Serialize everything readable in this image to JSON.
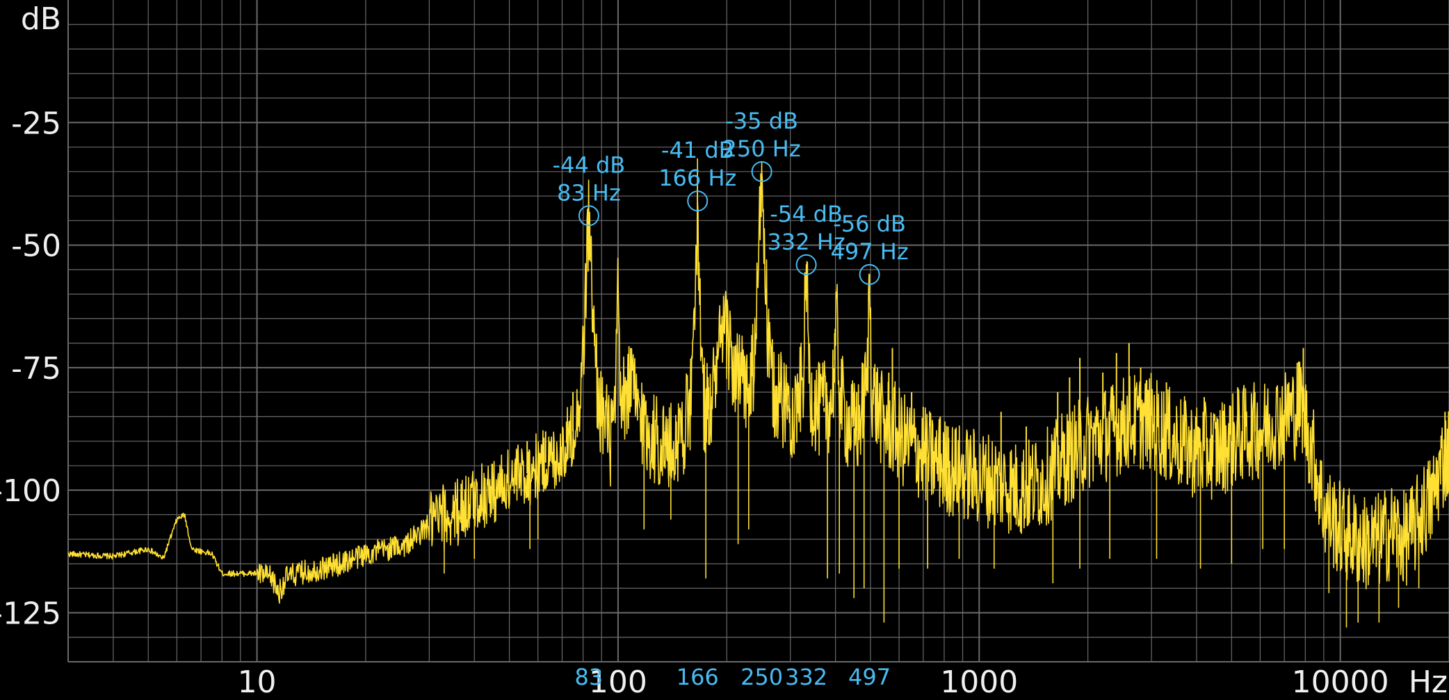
{
  "chart_data": {
    "type": "line",
    "x_scale": "log",
    "xlim": [
      3,
      20000
    ],
    "ylim": [
      -135,
      0
    ],
    "grid": true,
    "ylabel": "dB",
    "xlabel": "Hz",
    "y_ticks": [
      -25,
      -50,
      -75,
      -100,
      -125
    ],
    "x_ticks": [
      10,
      100,
      1000,
      10000
    ],
    "colors": {
      "trace": "#ffe033",
      "peak": "#48bcf2",
      "grid": "#6a6a6a",
      "text": "#f0f0f0",
      "background": "#000000"
    },
    "peaks": [
      {
        "freq": 83,
        "db": -44,
        "db_label": "-44 dB",
        "hz_label": "83 Hz",
        "axis_label": "83"
      },
      {
        "freq": 166,
        "db": -41,
        "db_label": "-41 dB",
        "hz_label": "166 Hz",
        "axis_label": "166"
      },
      {
        "freq": 250,
        "db": -35,
        "db_label": "-35 dB",
        "hz_label": "250 Hz",
        "axis_label": "250"
      },
      {
        "freq": 332,
        "db": -54,
        "db_label": "-54 dB",
        "hz_label": "332 Hz",
        "axis_label": "332"
      },
      {
        "freq": 497,
        "db": -56,
        "db_label": "-56 dB",
        "hz_label": "497 Hz",
        "axis_label": "497"
      }
    ],
    "series": [
      {
        "points": [
          [
            3,
            -113
          ],
          [
            4,
            -113.5
          ],
          [
            5,
            -112
          ],
          [
            5.5,
            -114
          ],
          [
            6.0,
            -106
          ],
          [
            6.3,
            -105
          ],
          [
            6.6,
            -112
          ],
          [
            7.5,
            -113
          ],
          [
            8,
            -117
          ],
          [
            9,
            -117
          ],
          [
            10,
            -117
          ],
          [
            11,
            -118
          ],
          [
            11.5,
            -121
          ],
          [
            12,
            -118
          ],
          [
            13,
            -117
          ],
          [
            15,
            -116
          ],
          [
            17,
            -115
          ],
          [
            20,
            -113
          ],
          [
            23,
            -112
          ],
          [
            26,
            -111
          ],
          [
            28,
            -109
          ],
          [
            30,
            -107
          ],
          [
            32,
            -106
          ],
          [
            35,
            -105
          ],
          [
            38,
            -103
          ],
          [
            42,
            -101
          ],
          [
            46,
            -100
          ],
          [
            50,
            -98
          ],
          [
            55,
            -97
          ],
          [
            60,
            -95
          ],
          [
            65,
            -94
          ],
          [
            70,
            -92
          ],
          [
            75,
            -88
          ],
          [
            78,
            -83
          ],
          [
            80,
            -72
          ],
          [
            82,
            -52
          ],
          [
            83,
            -44
          ],
          [
            84,
            -52
          ],
          [
            86,
            -72
          ],
          [
            88,
            -80
          ],
          [
            90,
            -84
          ],
          [
            95,
            -90
          ],
          [
            98,
            -86
          ],
          [
            100,
            -60
          ],
          [
            102,
            -86
          ],
          [
            105,
            -80
          ],
          [
            108,
            -78
          ],
          [
            112,
            -82
          ],
          [
            120,
            -88
          ],
          [
            130,
            -90
          ],
          [
            140,
            -92
          ],
          [
            150,
            -88
          ],
          [
            160,
            -82
          ],
          [
            164,
            -58
          ],
          [
            166,
            -41
          ],
          [
            168,
            -58
          ],
          [
            172,
            -82
          ],
          [
            180,
            -84
          ],
          [
            190,
            -72
          ],
          [
            200,
            -68
          ],
          [
            210,
            -76
          ],
          [
            220,
            -78
          ],
          [
            232,
            -80
          ],
          [
            240,
            -72
          ],
          [
            246,
            -48
          ],
          [
            250,
            -35
          ],
          [
            254,
            -48
          ],
          [
            260,
            -72
          ],
          [
            270,
            -80
          ],
          [
            290,
            -82
          ],
          [
            310,
            -84
          ],
          [
            325,
            -78
          ],
          [
            330,
            -62
          ],
          [
            332,
            -54
          ],
          [
            334,
            -62
          ],
          [
            340,
            -80
          ],
          [
            360,
            -84
          ],
          [
            390,
            -82
          ],
          [
            405,
            -66
          ],
          [
            410,
            -80
          ],
          [
            430,
            -86
          ],
          [
            460,
            -88
          ],
          [
            490,
            -78
          ],
          [
            495,
            -62
          ],
          [
            497,
            -56
          ],
          [
            499,
            -62
          ],
          [
            505,
            -80
          ],
          [
            540,
            -86
          ],
          [
            590,
            -88
          ],
          [
            620,
            -90
          ],
          [
            680,
            -92
          ],
          [
            750,
            -94
          ],
          [
            850,
            -96
          ],
          [
            950,
            -97
          ],
          [
            1100,
            -98
          ],
          [
            1300,
            -100
          ],
          [
            1500,
            -98
          ],
          [
            1700,
            -94
          ],
          [
            2000,
            -90
          ],
          [
            2300,
            -88
          ],
          [
            2600,
            -86
          ],
          [
            3000,
            -86
          ],
          [
            3500,
            -90
          ],
          [
            4000,
            -92
          ],
          [
            4500,
            -92
          ],
          [
            5000,
            -90
          ],
          [
            5500,
            -88
          ],
          [
            6000,
            -88
          ],
          [
            6500,
            -86
          ],
          [
            7000,
            -85
          ],
          [
            7500,
            -84
          ],
          [
            7800,
            -82
          ],
          [
            8000,
            -86
          ],
          [
            8500,
            -94
          ],
          [
            9000,
            -104
          ],
          [
            10000,
            -108
          ],
          [
            11000,
            -110
          ],
          [
            12000,
            -111
          ],
          [
            13000,
            -110
          ],
          [
            14000,
            -108
          ],
          [
            15000,
            -110
          ],
          [
            16000,
            -108
          ],
          [
            17000,
            -104
          ],
          [
            18000,
            -102
          ],
          [
            19000,
            -95
          ],
          [
            20000,
            -92
          ]
        ],
        "spikes": [
          [
            56,
            -90
          ],
          [
            63,
            -88
          ],
          [
            72,
            -86
          ],
          [
            75,
            -80
          ],
          [
            107,
            -74
          ],
          [
            118,
            -84
          ],
          [
            125,
            -86
          ],
          [
            135,
            -88
          ],
          [
            145,
            -86
          ],
          [
            178,
            -79
          ],
          [
            195,
            -70
          ],
          [
            215,
            -72
          ],
          [
            226,
            -76
          ],
          [
            280,
            -78
          ],
          [
            297,
            -84
          ],
          [
            350,
            -86
          ],
          [
            372,
            -84
          ],
          [
            378,
            -78
          ],
          [
            398,
            -68
          ],
          [
            447,
            -80
          ],
          [
            458,
            -80
          ],
          [
            526,
            -82
          ],
          [
            562,
            -76
          ],
          [
            575,
            -71
          ],
          [
            610,
            -83
          ],
          [
            650,
            -80
          ],
          [
            700,
            -83
          ],
          [
            780,
            -85
          ],
          [
            820,
            -87
          ],
          [
            1150,
            -84
          ],
          [
            1350,
            -87
          ],
          [
            1650,
            -80
          ],
          [
            1780,
            -77
          ],
          [
            1900,
            -73
          ],
          [
            2200,
            -76
          ],
          [
            2400,
            -72
          ],
          [
            2600,
            -70
          ],
          [
            2800,
            -75
          ],
          [
            3300,
            -78
          ],
          [
            3700,
            -82
          ],
          [
            4200,
            -81
          ],
          [
            5200,
            -79
          ],
          [
            5800,
            -80
          ],
          [
            6300,
            -81
          ],
          [
            7200,
            -78
          ],
          [
            7600,
            -74
          ],
          [
            7900,
            -71
          ],
          [
            19500,
            -84
          ]
        ],
        "dips": [
          [
            33,
            -117
          ],
          [
            40,
            -114
          ],
          [
            57,
            -112
          ],
          [
            60,
            -110
          ],
          [
            118,
            -108
          ],
          [
            140,
            -106
          ],
          [
            175,
            -118
          ],
          [
            215,
            -111
          ],
          [
            230,
            -108
          ],
          [
            380,
            -118
          ],
          [
            410,
            -117
          ],
          [
            450,
            -122
          ],
          [
            480,
            -120
          ],
          [
            545,
            -127
          ],
          [
            600,
            -116
          ],
          [
            720,
            -116
          ],
          [
            880,
            -114
          ],
          [
            1100,
            -116
          ],
          [
            1600,
            -119
          ],
          [
            1900,
            -116
          ],
          [
            2300,
            -114
          ],
          [
            3100,
            -114
          ],
          [
            4100,
            -116
          ],
          [
            5000,
            -115
          ],
          [
            6100,
            -112
          ],
          [
            7000,
            -112
          ],
          [
            9300,
            -121
          ],
          [
            10400,
            -128
          ],
          [
            11200,
            -127
          ],
          [
            12800,
            -127
          ],
          [
            14500,
            -124
          ],
          [
            16500,
            -120
          ]
        ]
      }
    ]
  }
}
